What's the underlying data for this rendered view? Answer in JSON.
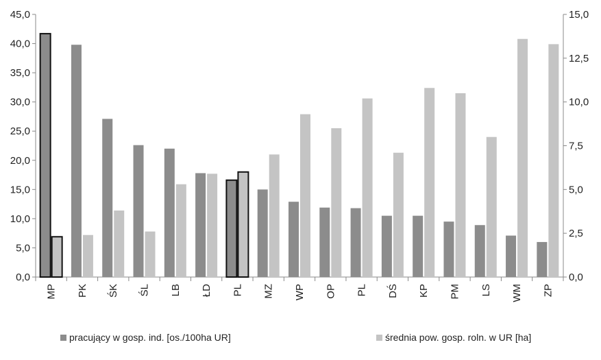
{
  "chart_data": {
    "type": "bar",
    "categories": [
      "MP",
      "PK",
      "ŚK",
      "ŚL",
      "LB",
      "ŁD",
      "PL",
      "MZ",
      "WP",
      "OP",
      "PL",
      "DŚ",
      "KP",
      "PM",
      "LS",
      "WM",
      "ZP"
    ],
    "highlighted_categories": [
      "MP",
      "PL"
    ],
    "series": [
      {
        "name": "pracujący w gosp. ind. [os./100ha UR]",
        "axis": "left",
        "color": "#8c8c8c",
        "values": [
          41.7,
          39.8,
          27.1,
          22.6,
          22.0,
          17.8,
          16.6,
          15.0,
          12.9,
          11.9,
          11.8,
          10.5,
          10.5,
          9.5,
          8.9,
          7.1,
          6.0
        ]
      },
      {
        "name": "średnia pow. gosp. roln. w UR [ha]",
        "axis": "right",
        "color": "#c4c4c4",
        "values": [
          2.3,
          2.4,
          3.8,
          2.6,
          5.3,
          5.9,
          6.0,
          7.0,
          9.3,
          8.5,
          10.2,
          7.1,
          10.8,
          10.5,
          8.0,
          13.6,
          13.3
        ]
      }
    ],
    "y_left": {
      "lim": [
        0,
        45
      ],
      "ticks": [
        "0,0",
        "5,0",
        "10,0",
        "15,0",
        "20,0",
        "25,0",
        "30,0",
        "35,0",
        "40,0",
        "45,0"
      ]
    },
    "y_right": {
      "lim": [
        0,
        15
      ],
      "ticks": [
        "0,0",
        "2,5",
        "5,0",
        "7,5",
        "10,0",
        "12,5",
        "15,0"
      ]
    },
    "grid": false,
    "legend_position": "bottom"
  },
  "legend": {
    "item1": "pracujący w gosp. ind. [os./100ha UR]",
    "item2": "średnia pow. gosp. roln. w UR [ha]",
    "color1": "#8c8c8c",
    "color2": "#c4c4c4"
  }
}
